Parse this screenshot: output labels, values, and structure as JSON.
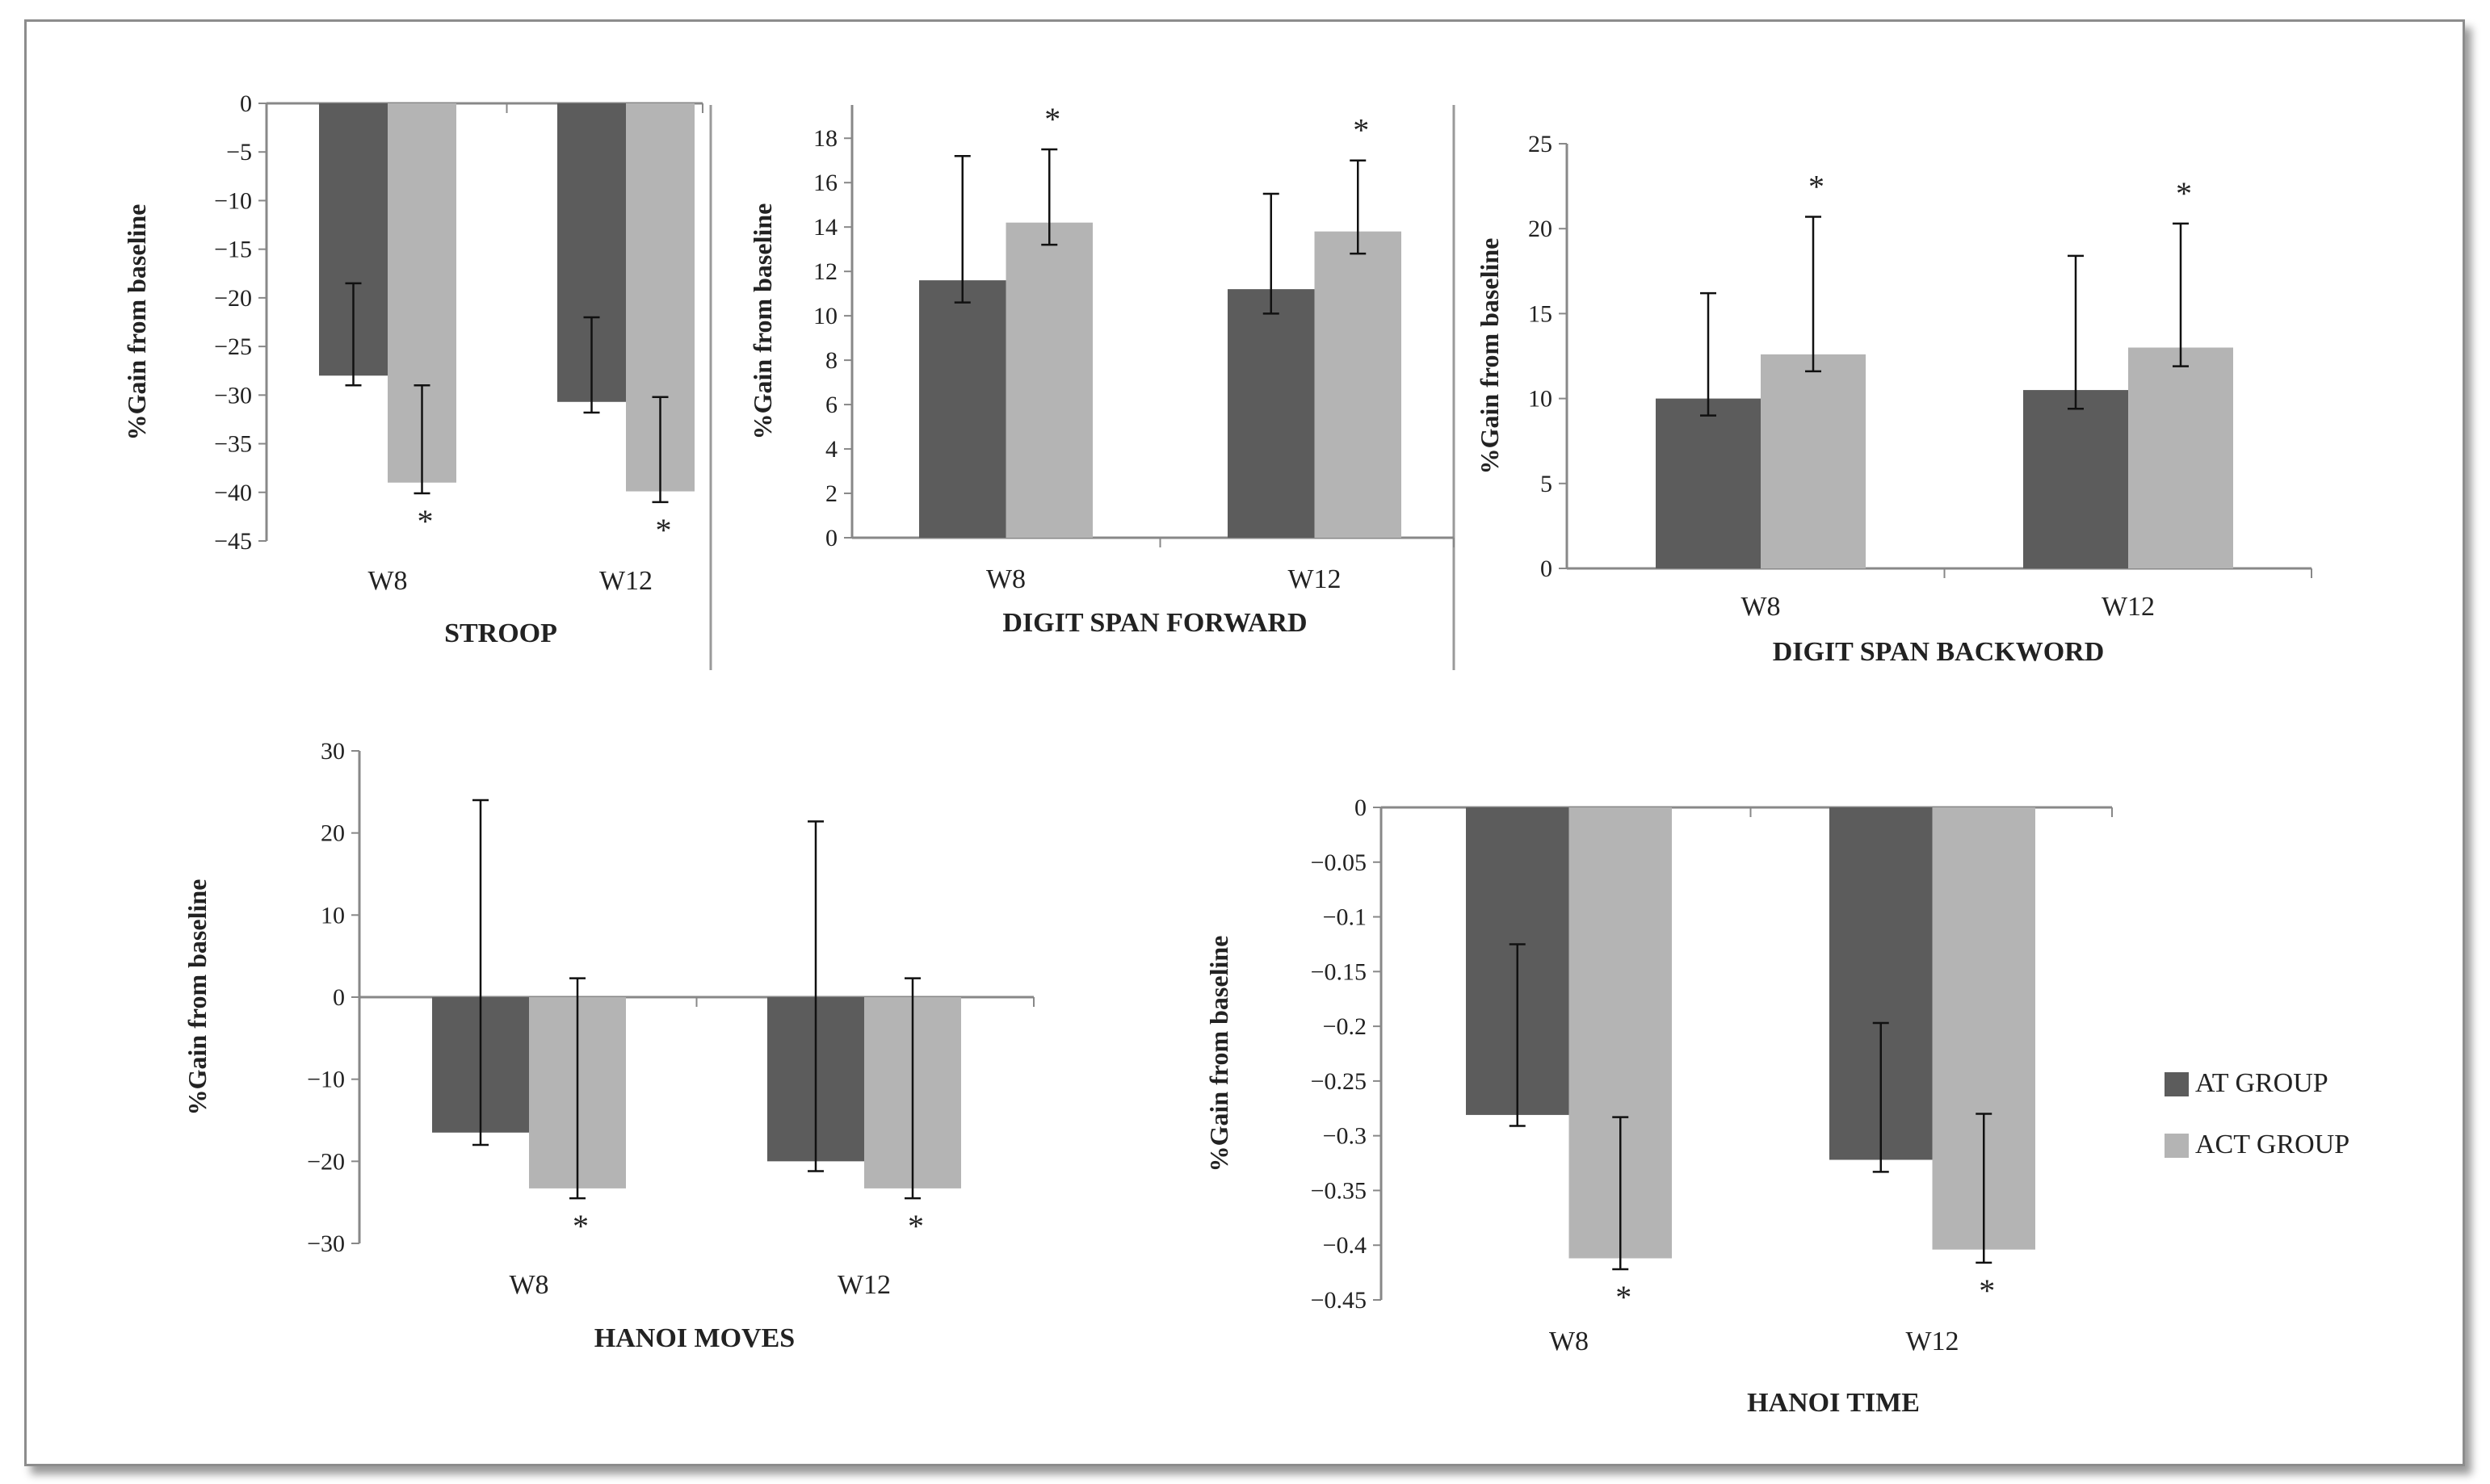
{
  "legend": [
    {
      "label": "AT GROUP",
      "color": "#5c5c5c"
    },
    {
      "label": "ACT GROUP",
      "color": "#b4b4b4"
    }
  ],
  "chart_data": [
    {
      "id": "stroop",
      "type": "bar",
      "title": "STROOP",
      "ylabel": "%Gain from baseline",
      "categories": [
        "W8",
        "W12"
      ],
      "ylim": [
        -45,
        0
      ],
      "ticks": [
        0,
        -5,
        -10,
        -15,
        -20,
        -25,
        -30,
        -35,
        -40,
        -45
      ],
      "tick_labels": [
        "0",
        "−5",
        "−10",
        "−15",
        "−20",
        "−25",
        "−30",
        "−35",
        "−40",
        "−45"
      ],
      "series": [
        {
          "name": "AT GROUP",
          "values": [
            -28,
            -30.7
          ],
          "err_low": [
            -29,
            -31.8
          ],
          "err_high": [
            -18.5,
            -22
          ]
        },
        {
          "name": "ACT GROUP",
          "values": [
            -39,
            -39.9
          ],
          "err_low": [
            -40.1,
            -41
          ],
          "err_high": [
            -29,
            -30.2
          ]
        }
      ],
      "stars": [
        {
          "series": 1,
          "cat": 0,
          "symbol": "*"
        },
        {
          "series": 1,
          "cat": 1,
          "symbol": "*"
        }
      ]
    },
    {
      "id": "dsf",
      "type": "bar",
      "title": "DIGIT SPAN FORWARD",
      "ylabel": "%Gain from baseline",
      "categories": [
        "W8",
        "W12"
      ],
      "ylim": [
        0,
        19.5
      ],
      "ticks": [
        0,
        2,
        4,
        6,
        8,
        10,
        12,
        14,
        16,
        18
      ],
      "tick_labels": [
        "0",
        "2",
        "4",
        "6",
        "8",
        "10",
        "12",
        "14",
        "16",
        "18"
      ],
      "series": [
        {
          "name": "AT GROUP",
          "values": [
            11.6,
            11.2
          ],
          "err_low": [
            10.6,
            10.1
          ],
          "err_high": [
            17.2,
            15.5
          ]
        },
        {
          "name": "ACT GROUP",
          "values": [
            14.2,
            13.8
          ],
          "err_low": [
            13.2,
            12.8
          ],
          "err_high": [
            17.5,
            17
          ]
        }
      ],
      "stars": [
        {
          "series": 1,
          "cat": 0,
          "symbol": "*"
        },
        {
          "series": 1,
          "cat": 1,
          "symbol": "*"
        }
      ]
    },
    {
      "id": "dsb",
      "type": "bar",
      "title": "DIGIT SPAN BACKWORD",
      "ylabel": "%Gain from baseline",
      "categories": [
        "W8",
        "W12"
      ],
      "ylim": [
        0,
        25
      ],
      "ticks": [
        0,
        5,
        10,
        15,
        20,
        25
      ],
      "tick_labels": [
        "0",
        "5",
        "10",
        "15",
        "20",
        "25"
      ],
      "series": [
        {
          "name": "AT GROUP",
          "values": [
            10,
            10.5
          ],
          "err_low": [
            9,
            9.4
          ],
          "err_high": [
            16.2,
            18.4
          ]
        },
        {
          "name": "ACT GROUP",
          "values": [
            12.6,
            13
          ],
          "err_low": [
            11.6,
            11.9
          ],
          "err_high": [
            20.7,
            20.3
          ]
        }
      ],
      "stars": [
        {
          "series": 1,
          "cat": 0,
          "symbol": "*"
        },
        {
          "series": 1,
          "cat": 1,
          "symbol": "*"
        }
      ]
    },
    {
      "id": "hmoves",
      "type": "bar",
      "title": "HANOI MOVES",
      "ylabel": "%Gain from baseline",
      "categories": [
        "W8",
        "W12"
      ],
      "ylim": [
        -30,
        30
      ],
      "ticks": [
        30,
        20,
        10,
        0,
        -10,
        -20,
        -30
      ],
      "tick_labels": [
        "30",
        "20",
        "10",
        "0",
        "−10",
        "−20",
        "−30"
      ],
      "series": [
        {
          "name": "AT GROUP",
          "values": [
            -16.5,
            -20
          ],
          "err_low": [
            -18,
            -21.2
          ],
          "err_high": [
            24,
            21.4
          ]
        },
        {
          "name": "ACT GROUP",
          "values": [
            -23.3,
            -23.3
          ],
          "err_low": [
            -24.5,
            -24.5
          ],
          "err_high": [
            2.3,
            2.3
          ]
        }
      ],
      "stars": [
        {
          "series": 1,
          "cat": 0,
          "symbol": "*"
        },
        {
          "series": 1,
          "cat": 1,
          "symbol": "*"
        }
      ]
    },
    {
      "id": "htime",
      "type": "bar",
      "title": "HANOI TIME",
      "ylabel": "%Gain from baseline",
      "categories": [
        "W8",
        "W12"
      ],
      "ylim": [
        -0.45,
        0
      ],
      "ticks": [
        0,
        -0.05,
        -0.1,
        -0.15,
        -0.2,
        -0.25,
        -0.3,
        -0.35,
        -0.4,
        -0.45
      ],
      "tick_labels": [
        "0",
        "−0.05",
        "−0.1",
        "−0.15",
        "−0.2",
        "−0.25",
        "−0.3",
        "−0.35",
        "−0.4",
        "−0.45"
      ],
      "series": [
        {
          "name": "AT GROUP",
          "values": [
            -0.281,
            -0.322
          ],
          "err_low": [
            -0.291,
            -0.333
          ],
          "err_high": [
            -0.125,
            -0.197
          ]
        },
        {
          "name": "ACT GROUP",
          "values": [
            -0.412,
            -0.404
          ],
          "err_low": [
            -0.422,
            -0.416
          ],
          "err_high": [
            -0.283,
            -0.28
          ]
        }
      ],
      "stars": [
        {
          "series": 1,
          "cat": 0,
          "symbol": "*"
        },
        {
          "series": 1,
          "cat": 1,
          "symbol": "*"
        }
      ]
    }
  ]
}
